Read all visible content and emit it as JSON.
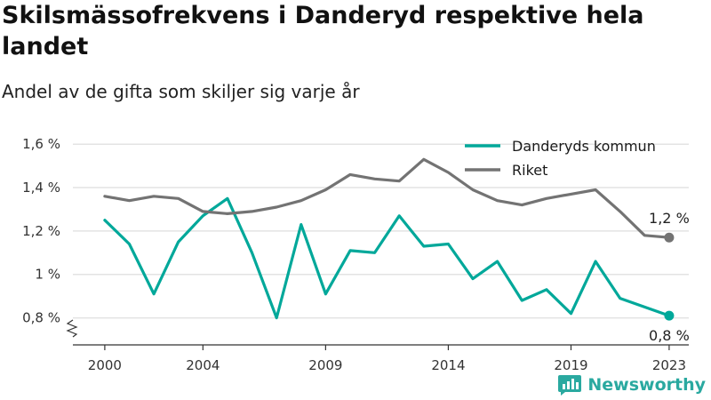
{
  "title": "Skilsmässofrekvens i Danderyd respektive hela landet",
  "subtitle": "Andel av de gifta som skiljer sig varje år",
  "brand": "Newsworthy",
  "colors": {
    "danderyd": "#00a89a",
    "riket": "#737373",
    "grid": "#e3e3e3",
    "axis": "#333333"
  },
  "chart_data": {
    "type": "line",
    "x": [
      2000,
      2001,
      2002,
      2003,
      2004,
      2005,
      2006,
      2007,
      2008,
      2009,
      2010,
      2011,
      2012,
      2013,
      2014,
      2015,
      2016,
      2017,
      2018,
      2019,
      2020,
      2021,
      2022,
      2023
    ],
    "x_ticks": [
      {
        "value": 2000,
        "label": "2000"
      },
      {
        "value": 2004,
        "label": "2004"
      },
      {
        "value": 2009,
        "label": "2009"
      },
      {
        "value": 2014,
        "label": "2014"
      },
      {
        "value": 2019,
        "label": "2019"
      },
      {
        "value": 2023,
        "label": "2023"
      }
    ],
    "y_ticks": [
      {
        "value": 0.8,
        "label": "0,8 %"
      },
      {
        "value": 1.0,
        "label": "1 %"
      },
      {
        "value": 1.2,
        "label": "1,2 %"
      },
      {
        "value": 1.4,
        "label": "1,4 %"
      },
      {
        "value": 1.6,
        "label": "1,6 %"
      }
    ],
    "ylim": [
      0.7,
      1.65
    ],
    "grid": true,
    "legend_position": "top-right",
    "series": [
      {
        "name": "Danderyds kommun",
        "key": "danderyd",
        "values": [
          1.25,
          1.14,
          0.91,
          1.15,
          1.27,
          1.35,
          1.1,
          0.8,
          1.23,
          0.91,
          1.11,
          1.1,
          1.27,
          1.13,
          1.14,
          0.98,
          1.06,
          0.88,
          0.93,
          0.82,
          1.06,
          0.89,
          0.85,
          0.81
        ],
        "end_label": "0,8 %"
      },
      {
        "name": "Riket",
        "key": "riket",
        "values": [
          1.36,
          1.34,
          1.36,
          1.35,
          1.29,
          1.28,
          1.29,
          1.31,
          1.34,
          1.39,
          1.46,
          1.44,
          1.43,
          1.53,
          1.47,
          1.39,
          1.34,
          1.32,
          1.35,
          1.37,
          1.39,
          1.29,
          1.18,
          1.17
        ],
        "end_label": "1,2 %"
      }
    ]
  }
}
